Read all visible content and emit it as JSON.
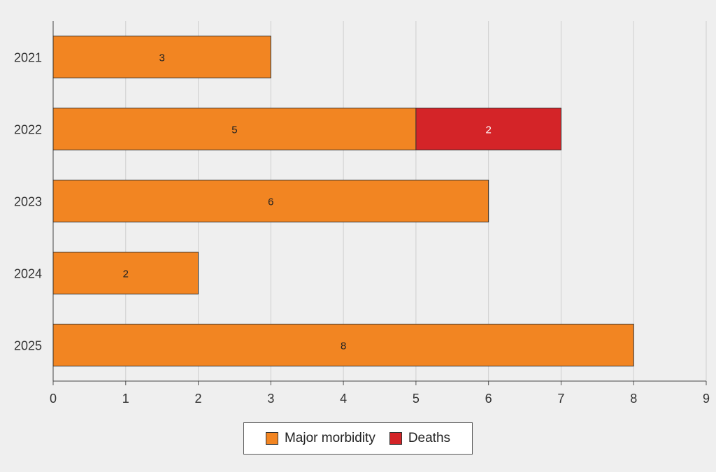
{
  "chart_data": {
    "type": "bar",
    "orientation": "horizontal",
    "stacked": true,
    "categories": [
      "2021",
      "2022",
      "2023",
      "2024",
      "2025"
    ],
    "series": [
      {
        "name": "Major morbidity",
        "values": [
          3,
          5,
          6,
          2,
          8
        ],
        "color": "#f28522",
        "label_color": "#222222"
      },
      {
        "name": "Deaths",
        "values": [
          0,
          2,
          0,
          0,
          0
        ],
        "color": "#d42428",
        "label_color": "#ffffff"
      }
    ],
    "title": "",
    "xlabel": "",
    "ylabel": "",
    "xlim": [
      0,
      9
    ],
    "xticks": [
      0,
      1,
      2,
      3,
      4,
      5,
      6,
      7,
      8,
      9
    ],
    "grid": "vertical",
    "legend": "bottom-center"
  }
}
